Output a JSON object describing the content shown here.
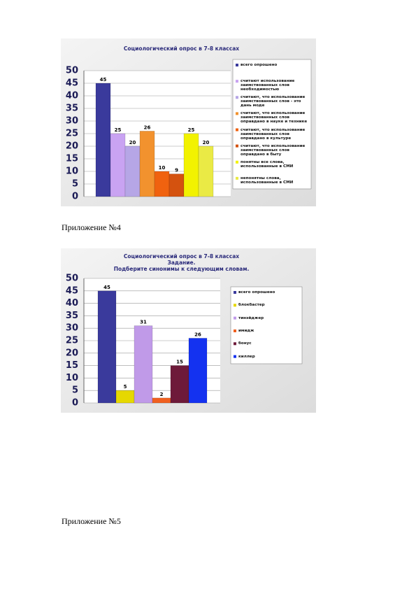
{
  "captions": [
    "Приложение №4",
    "Приложение №5"
  ],
  "chart_data": [
    {
      "type": "bar",
      "title": "Социологический опрос в 7-8 классах",
      "series": [
        {
          "name": "всего опрошено",
          "color": "#3a3a9c",
          "values": [
            45
          ]
        },
        {
          "name": "считают использование заимствованных слов необходимостью",
          "color": "#c9a3f2",
          "values": [
            25
          ]
        },
        {
          "name": "считают, что использование заимствованных слов - это дань моде",
          "color": "#b6a6e6",
          "values": [
            20
          ]
        },
        {
          "name": "считают, что использование заимствованных слов оправдано в науке и технике",
          "color": "#f2922e",
          "values": [
            26
          ]
        },
        {
          "name": "считают, что использование заимствованных слов оправдано в культуре",
          "color": "#f0620f",
          "values": [
            10
          ]
        },
        {
          "name": "считают, что использование заимствованных слов оправдано в быту",
          "color": "#d4520f",
          "values": [
            9
          ]
        },
        {
          "name": "понятны все слова, использованные в СМИ",
          "color": "#f2f200",
          "values": [
            25
          ]
        },
        {
          "name": "непонятны слова, использованные в СМИ",
          "color": "#eaea45",
          "values": [
            20
          ]
        }
      ],
      "ylim": [
        0,
        50
      ],
      "yticks": [
        0,
        5,
        10,
        15,
        20,
        25,
        30,
        35,
        40,
        45,
        50
      ],
      "grid": true
    },
    {
      "type": "bar",
      "title": "Социологический опрос в 7-8 классах",
      "task": "Задание.",
      "subtitle": "Подберите синонимы к следующим словам.",
      "series": [
        {
          "name": "всего опрошено",
          "color": "#3a3a9c",
          "values": [
            45
          ]
        },
        {
          "name": "блокбастер",
          "color": "#e6d800",
          "values": [
            5
          ]
        },
        {
          "name": "тинэйджер",
          "color": "#c09ae8",
          "values": [
            31
          ]
        },
        {
          "name": "имидж",
          "color": "#f06020",
          "values": [
            2
          ]
        },
        {
          "name": "бонус",
          "color": "#6e1a3a",
          "values": [
            15
          ]
        },
        {
          "name": "киллер",
          "color": "#1432f0",
          "values": [
            26
          ]
        }
      ],
      "ylim": [
        0,
        50
      ],
      "yticks": [
        0,
        5,
        10,
        15,
        20,
        25,
        30,
        35,
        40,
        45,
        50
      ],
      "grid": true
    }
  ]
}
